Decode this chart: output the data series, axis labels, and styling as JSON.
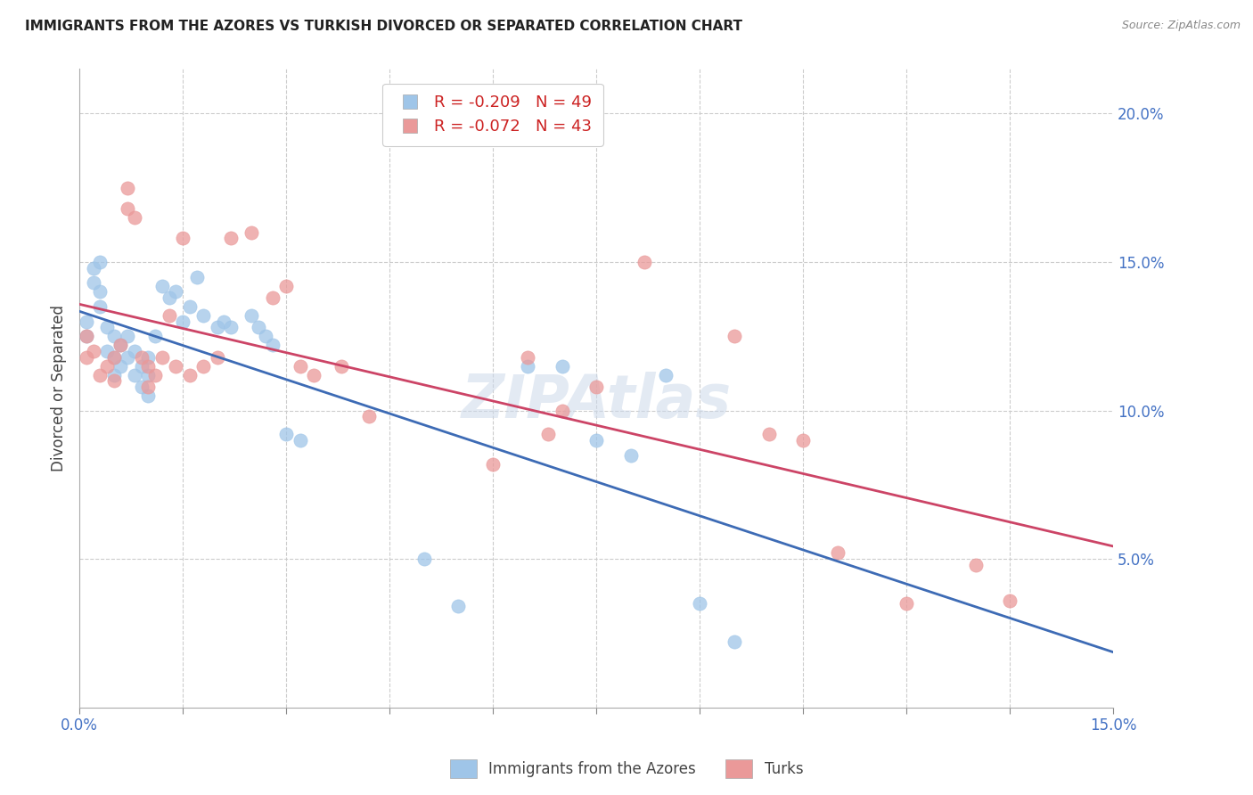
{
  "title": "IMMIGRANTS FROM THE AZORES VS TURKISH DIVORCED OR SEPARATED CORRELATION CHART",
  "source": "Source: ZipAtlas.com",
  "ylabel": "Divorced or Separated",
  "right_yticks": [
    0.05,
    0.1,
    0.15,
    0.2
  ],
  "right_yticklabels": [
    "5.0%",
    "10.0%",
    "15.0%",
    "20.0%"
  ],
  "xmin": 0.0,
  "xmax": 0.15,
  "ymin": 0.0,
  "ymax": 0.215,
  "legend_r1": "R = -0.209",
  "legend_n1": "N = 49",
  "legend_r2": "R = -0.072",
  "legend_n2": "N = 43",
  "legend_label1": "Immigrants from the Azores",
  "legend_label2": "Turks",
  "color_blue": "#9fc5e8",
  "color_pink": "#ea9999",
  "line_blue": "#3d6bb5",
  "line_pink": "#cc4466",
  "watermark": "ZIPAtlas",
  "axis_color": "#4472c4",
  "blue_scatter_x": [
    0.001,
    0.001,
    0.002,
    0.002,
    0.003,
    0.003,
    0.003,
    0.004,
    0.004,
    0.005,
    0.005,
    0.005,
    0.006,
    0.006,
    0.007,
    0.007,
    0.008,
    0.008,
    0.009,
    0.009,
    0.01,
    0.01,
    0.01,
    0.011,
    0.012,
    0.013,
    0.014,
    0.015,
    0.016,
    0.017,
    0.018,
    0.02,
    0.021,
    0.022,
    0.025,
    0.026,
    0.027,
    0.028,
    0.03,
    0.032,
    0.05,
    0.055,
    0.065,
    0.07,
    0.075,
    0.08,
    0.085,
    0.09,
    0.095
  ],
  "blue_scatter_y": [
    0.125,
    0.13,
    0.148,
    0.143,
    0.15,
    0.14,
    0.135,
    0.128,
    0.12,
    0.125,
    0.118,
    0.112,
    0.122,
    0.115,
    0.125,
    0.118,
    0.12,
    0.112,
    0.115,
    0.108,
    0.118,
    0.112,
    0.105,
    0.125,
    0.142,
    0.138,
    0.14,
    0.13,
    0.135,
    0.145,
    0.132,
    0.128,
    0.13,
    0.128,
    0.132,
    0.128,
    0.125,
    0.122,
    0.092,
    0.09,
    0.05,
    0.034,
    0.115,
    0.115,
    0.09,
    0.085,
    0.112,
    0.035,
    0.022
  ],
  "pink_scatter_x": [
    0.001,
    0.001,
    0.002,
    0.003,
    0.004,
    0.005,
    0.005,
    0.006,
    0.007,
    0.007,
    0.008,
    0.009,
    0.01,
    0.01,
    0.011,
    0.012,
    0.013,
    0.014,
    0.015,
    0.016,
    0.018,
    0.02,
    0.022,
    0.025,
    0.028,
    0.03,
    0.032,
    0.034,
    0.038,
    0.042,
    0.06,
    0.065,
    0.068,
    0.07,
    0.075,
    0.082,
    0.095,
    0.1,
    0.105,
    0.11,
    0.12,
    0.13,
    0.135
  ],
  "pink_scatter_y": [
    0.125,
    0.118,
    0.12,
    0.112,
    0.115,
    0.118,
    0.11,
    0.122,
    0.175,
    0.168,
    0.165,
    0.118,
    0.115,
    0.108,
    0.112,
    0.118,
    0.132,
    0.115,
    0.158,
    0.112,
    0.115,
    0.118,
    0.158,
    0.16,
    0.138,
    0.142,
    0.115,
    0.112,
    0.115,
    0.098,
    0.082,
    0.118,
    0.092,
    0.1,
    0.108,
    0.15,
    0.125,
    0.092,
    0.09,
    0.052,
    0.035,
    0.048,
    0.036
  ]
}
